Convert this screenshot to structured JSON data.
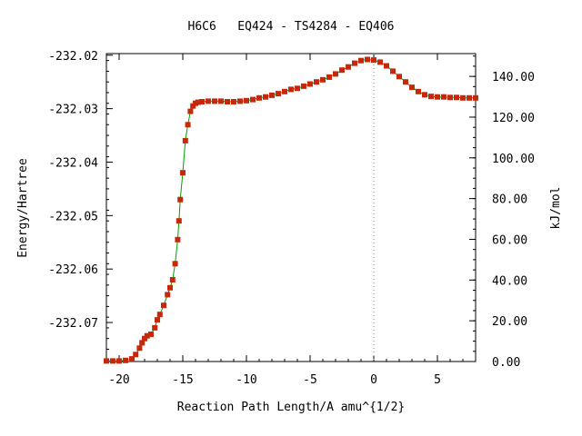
{
  "chart_data": {
    "type": "line",
    "title": "H6C6   EQ424 - TS4284 - EQ406",
    "xlabel": "Reaction Path Length/A amu^{1/2}",
    "ylabel": "Energy/Hartree",
    "y2label": "kJ/mol",
    "xlim": [
      -21,
      8
    ],
    "ylim": [
      -232.0773,
      -232.0197
    ],
    "y2lim": [
      0,
      151.2
    ],
    "x_ticks": [
      -20,
      -15,
      -10,
      -5,
      0,
      5
    ],
    "x_tick_labels": [
      "-20",
      "-15",
      "-10",
      "-5",
      "0",
      "5"
    ],
    "y_ticks": [
      -232.02,
      -232.03,
      -232.04,
      -232.05,
      -232.06,
      -232.07
    ],
    "y_tick_labels": [
      "-232.02",
      "-232.03",
      "-232.04",
      "-232.05",
      "-232.06",
      "-232.07"
    ],
    "y2_ticks": [
      0,
      20,
      40,
      60,
      80,
      100,
      120,
      140
    ],
    "y2_tick_labels": [
      "0.00",
      "20.00",
      "40.00",
      "60.00",
      "80.00",
      "100.00",
      "120.00",
      "140.00"
    ],
    "ts_marker_x": 0,
    "grid": false,
    "line_color": "#00a000",
    "marker_color": "#c8280a",
    "series": [
      {
        "x": [
          -21.0,
          -20.5,
          -20.0,
          -19.5,
          -19.0,
          -18.7,
          -18.4,
          -18.2,
          -18.0,
          -17.8,
          -17.5,
          -17.2,
          -17.0,
          -16.8,
          -16.5,
          -16.2,
          -16.0,
          -15.8,
          -15.6,
          -15.4,
          -15.3,
          -15.2,
          -15.0,
          -14.8,
          -14.6,
          -14.4,
          -14.2,
          -14.0,
          -13.8,
          -13.5,
          -13.0,
          -12.5,
          -12.0,
          -11.5,
          -11.0,
          -10.5,
          -10.0,
          -9.5,
          -9.0,
          -8.5,
          -8.0,
          -7.5,
          -7.0,
          -6.5,
          -6.0,
          -5.5,
          -5.0,
          -4.5,
          -4.0,
          -3.5,
          -3.0,
          -2.5,
          -2.0,
          -1.5,
          -1.0,
          -0.5,
          0.0,
          0.5,
          1.0,
          1.5,
          2.0,
          2.5,
          3.0,
          3.5,
          4.0,
          4.5,
          5.0,
          5.5,
          6.0,
          6.5,
          7.0,
          7.5,
          8.0
        ],
        "y": [
          -232.0772,
          -232.0772,
          -232.0772,
          -232.0771,
          -232.0768,
          -232.076,
          -232.0748,
          -232.0738,
          -232.073,
          -232.0725,
          -232.0722,
          -232.071,
          -232.0695,
          -232.0685,
          -232.0668,
          -232.0648,
          -232.0635,
          -232.062,
          -232.059,
          -232.0545,
          -232.051,
          -232.047,
          -232.042,
          -232.036,
          -232.033,
          -232.0305,
          -232.0295,
          -232.029,
          -232.0288,
          -232.0287,
          -232.0286,
          -232.0286,
          -232.0286,
          -232.0287,
          -232.0287,
          -232.0286,
          -232.0285,
          -232.0283,
          -232.028,
          -232.0278,
          -232.0275,
          -232.0272,
          -232.0268,
          -232.0264,
          -232.0262,
          -232.0258,
          -232.0254,
          -232.025,
          -232.0246,
          -232.0241,
          -232.0235,
          -232.0228,
          -232.0222,
          -232.0215,
          -232.021,
          -232.0208,
          -232.0209,
          -232.0213,
          -232.022,
          -232.023,
          -232.024,
          -232.025,
          -232.026,
          -232.0268,
          -232.0274,
          -232.0277,
          -232.0278,
          -232.0278,
          -232.0279,
          -232.0279,
          -232.028,
          -232.028,
          -232.028
        ]
      }
    ]
  }
}
